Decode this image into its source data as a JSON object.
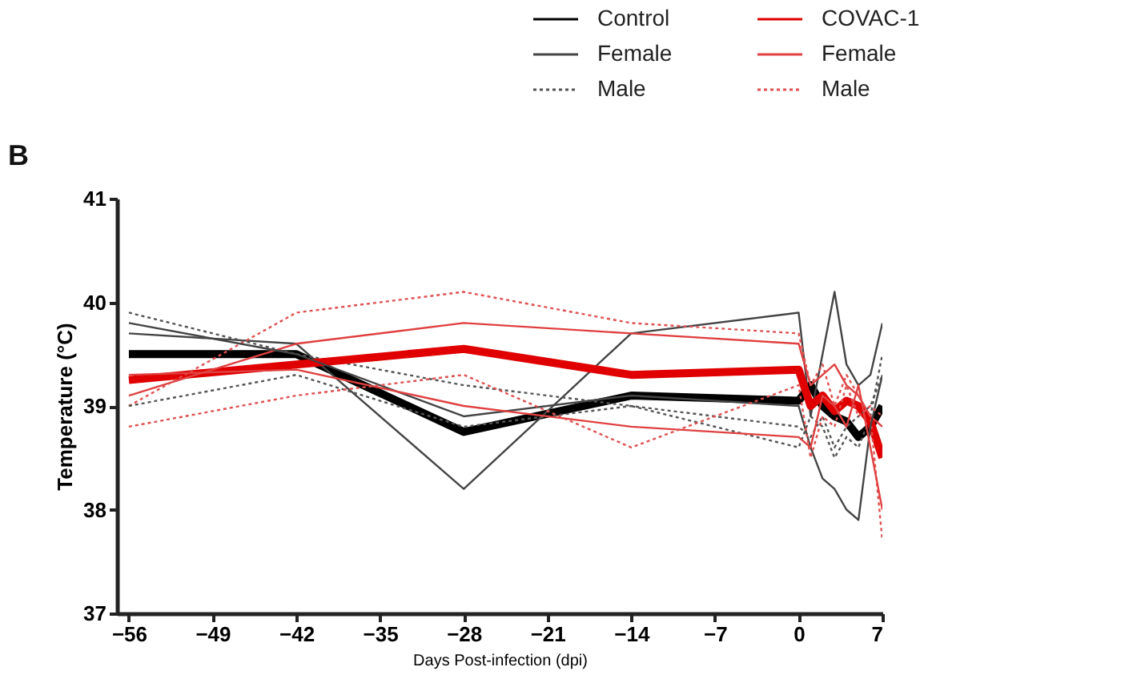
{
  "chart_data": {
    "type": "line",
    "title": "B",
    "xlabel": "Days Post-infection (dpi)",
    "ylabel": "Temperature (°C)",
    "x": [
      -56,
      -42,
      -28,
      -14,
      0,
      1,
      2,
      3,
      4,
      5,
      6,
      7
    ],
    "xlim": [
      -57,
      7
    ],
    "xticks": [
      -56,
      -49,
      -42,
      -35,
      -28,
      -21,
      -14,
      -7,
      0,
      7
    ],
    "ylim": [
      37,
      41
    ],
    "yticks": [
      37,
      38,
      39,
      40,
      41
    ],
    "grid": false,
    "legend": "top right",
    "marker": "none",
    "series": [
      {
        "name": "Control",
        "color": "#000000",
        "line_style": "solid",
        "values": [
          39.5,
          39.5,
          38.75,
          39.1,
          39.05,
          39.2,
          39.0,
          38.9,
          38.85,
          38.7,
          38.8,
          39.0
        ]
      },
      {
        "name": "Female",
        "color": "#444444",
        "line_style": "solid",
        "values": [
          39.7,
          39.6,
          38.2,
          39.7,
          39.9,
          38.9,
          39.5,
          40.1,
          39.4,
          39.2,
          39.3,
          39.8
        ]
      },
      {
        "name": "Male",
        "color": "#555555",
        "line_style": "dotted",
        "values": [
          39.9,
          39.5,
          39.2,
          39.0,
          38.6,
          38.9,
          38.8,
          38.5,
          38.7,
          38.6,
          38.9,
          39.5
        ]
      },
      {
        "name": "COVAC-1",
        "color": "#e00000",
        "line_style": "solid",
        "values": [
          39.25,
          39.4,
          39.55,
          39.3,
          39.35,
          39.0,
          39.1,
          38.95,
          39.05,
          39.0,
          38.85,
          38.5
        ]
      },
      {
        "name": "Female",
        "color": "#e04040",
        "line_style": "solid",
        "values": [
          39.1,
          39.6,
          39.8,
          39.7,
          39.6,
          39.2,
          39.3,
          39.4,
          39.2,
          39.1,
          38.9,
          38.8
        ]
      },
      {
        "name": "Male",
        "color": "#e05050",
        "line_style": "dotted",
        "values": [
          39.0,
          39.9,
          40.1,
          39.8,
          39.7,
          39.2,
          39.4,
          39.0,
          39.3,
          39.1,
          38.9,
          37.7
        ]
      },
      {
        "color": "#444444",
        "line_style": "solid",
        "values": [
          39.8,
          39.5,
          38.9,
          39.1,
          39.0,
          38.6,
          38.3,
          38.2,
          38.0,
          37.9,
          38.8,
          39.3
        ]
      },
      {
        "color": "#555555",
        "line_style": "dotted",
        "values": [
          39.0,
          39.3,
          38.8,
          39.0,
          38.8,
          38.7,
          38.9,
          38.6,
          38.8,
          38.9,
          39.0,
          39.3
        ]
      },
      {
        "color": "#e04040",
        "line_style": "solid",
        "values": [
          39.3,
          39.35,
          39.0,
          38.8,
          38.7,
          38.6,
          39.1,
          39.0,
          38.8,
          39.2,
          38.6,
          38.0
        ]
      },
      {
        "color": "#e05050",
        "line_style": "dotted",
        "values": [
          38.8,
          39.1,
          39.3,
          38.6,
          39.2,
          38.5,
          38.9,
          38.8,
          39.2,
          38.9,
          39.0,
          38.9
        ]
      }
    ]
  }
}
